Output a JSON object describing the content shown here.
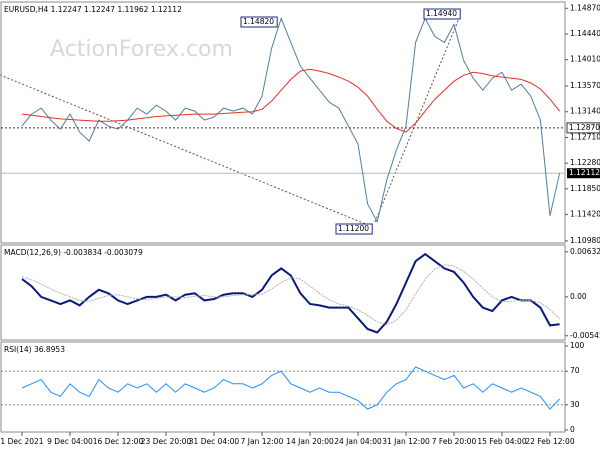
{
  "chart_data": [
    {
      "type": "line",
      "title": "EURUSD,H4  1.12247 1.12247 1.11962 1.12112",
      "watermark": "ActionForex.com",
      "categories": [
        "1 Dec 2021",
        null,
        null,
        null,
        null,
        "9 Dec 04:00",
        null,
        null,
        null,
        null,
        "16 Dec 12:00",
        null,
        null,
        null,
        null,
        "23 Dec 20:00",
        null,
        null,
        null,
        null,
        "31 Dec 04:00",
        null,
        null,
        null,
        null,
        "7 Jan 12:00",
        null,
        null,
        null,
        null,
        "14 Jan 20:00",
        null,
        null,
        null,
        null,
        "24 Jan 04:00",
        null,
        null,
        null,
        null,
        "31 Jan 12:00",
        null,
        null,
        null,
        null,
        "7 Feb 20:00",
        null,
        null,
        null,
        null,
        "15 Feb 04:00",
        null,
        null,
        null,
        null,
        "22 Feb 12:00",
        null
      ],
      "series": [
        {
          "color": "#4f7f9f",
          "values": [
            1.129,
            1.131,
            1.132,
            1.13,
            1.1285,
            1.131,
            1.128,
            1.1265,
            1.13,
            1.129,
            1.1285,
            1.13,
            1.132,
            1.131,
            1.1325,
            1.1315,
            1.13,
            1.132,
            1.1315,
            1.13,
            1.1305,
            1.132,
            1.1315,
            1.132,
            1.131,
            1.134,
            1.142,
            1.147,
            1.143,
            1.139,
            1.137,
            1.135,
            1.133,
            1.132,
            1.129,
            1.126,
            1.116,
            1.113,
            1.12,
            1.125,
            1.129,
            1.143,
            1.147,
            1.144,
            1.143,
            1.146,
            1.14,
            1.137,
            1.135,
            1.137,
            1.138,
            1.135,
            1.136,
            1.134,
            1.13,
            1.114,
            1.12112
          ]
        },
        {
          "color": "#e8302a",
          "values": [
            1.131,
            1.1308,
            1.1306,
            1.1304,
            1.1302,
            1.1301,
            1.13,
            1.1299,
            1.1298,
            1.1298,
            1.1299,
            1.13,
            1.1302,
            1.1304,
            1.1306,
            1.1307,
            1.1308,
            1.1309,
            1.131,
            1.131,
            1.131,
            1.1311,
            1.1312,
            1.1313,
            1.1314,
            1.1318,
            1.1332,
            1.135,
            1.1368,
            1.1382,
            1.1385,
            1.1382,
            1.1378,
            1.1372,
            1.1365,
            1.1355,
            1.134,
            1.1318,
            1.1298,
            1.1286,
            1.128,
            1.1295,
            1.1315,
            1.1335,
            1.135,
            1.1365,
            1.1375,
            1.138,
            1.1378,
            1.1374,
            1.1372,
            1.137,
            1.1368,
            1.1362,
            1.1352,
            1.1335,
            1.1315
          ]
        }
      ],
      "ylim": [
        1.10945,
        1.14975
      ],
      "yticks": [
        {
          "value": 1.1487,
          "label": "1.14870"
        },
        {
          "value": 1.1444,
          "label": "1.14440"
        },
        {
          "value": 1.1401,
          "label": "1.14010"
        },
        {
          "value": 1.1357,
          "label": "1.13570"
        },
        {
          "value": 1.1314,
          "label": "1.13140"
        },
        {
          "value": 1.1271,
          "label": "1.12710"
        },
        {
          "value": 1.1228,
          "label": "1.12280"
        },
        {
          "value": 1.1185,
          "label": "1.11850"
        },
        {
          "value": 1.1142,
          "label": "1.11420"
        },
        {
          "value": 1.1098,
          "label": "1.10980"
        }
      ],
      "level": {
        "value": 1.1287,
        "label": "1.12870"
      },
      "last_price": {
        "value": 1.12112,
        "label": "1.12112"
      },
      "annotations": [
        "1.14820",
        "1.14940",
        "1.11200"
      ]
    },
    {
      "type": "line",
      "title": "MACD(12,26,9) -0.003834 -0.003079",
      "series": [
        {
          "color": "#0a1a7a",
          "values": [
            0.0025,
            0.0015,
            0.0,
            -0.0005,
            -0.001,
            -0.0005,
            -0.0012,
            0.0,
            0.001,
            0.0005,
            -0.0005,
            -0.001,
            -0.0005,
            0.0,
            0.0,
            0.0003,
            -0.0005,
            0.0003,
            0.0005,
            -0.0005,
            -0.0003,
            0.0003,
            0.0005,
            0.0005,
            0.0,
            0.001,
            0.003,
            0.004,
            0.003,
            0.0005,
            -0.001,
            -0.0012,
            -0.0015,
            -0.0015,
            -0.0015,
            -0.003,
            -0.0045,
            -0.005,
            -0.0035,
            -0.001,
            0.002,
            0.005,
            0.006,
            0.005,
            0.004,
            0.0035,
            0.002,
            0.0,
            -0.0015,
            -0.002,
            -0.0005,
            0.0,
            -0.0005,
            -0.0005,
            -0.0015,
            -0.004,
            -0.003834
          ]
        },
        {
          "color": "#b0b0b0",
          "values": [
            0.0028,
            0.0024,
            0.0018,
            0.0011,
            0.0005,
            0.0,
            -0.0005,
            -0.0006,
            -0.0002,
            0.0002,
            0.0003,
            0.0,
            -0.0003,
            -0.0004,
            -0.0002,
            0.0,
            0.0,
            -0.0001,
            0.0001,
            0.0002,
            0.0,
            0.0,
            0.0002,
            0.0003,
            0.0003,
            0.0004,
            0.0011,
            0.002,
            0.0027,
            0.0025,
            0.0015,
            0.0005,
            -0.0004,
            -0.001,
            -0.0013,
            -0.0018,
            -0.0026,
            -0.0035,
            -0.0039,
            -0.0033,
            -0.0018,
            0.0004,
            0.0025,
            0.0039,
            0.0045,
            0.0043,
            0.0036,
            0.0025,
            0.0012,
            0.0,
            -0.0007,
            -0.0006,
            -0.0005,
            -0.0005,
            -0.0008,
            -0.0018,
            -0.003079
          ]
        }
      ],
      "ylim": [
        -0.00605,
        0.00728
      ],
      "yticks": [
        0.00632,
        {
          "value": 0,
          "label": "0.00"
        },
        -0.005455
      ]
    },
    {
      "type": "line",
      "title": "RSI(14) 36.8953",
      "series": [
        {
          "color": "#1e90ff",
          "values": [
            50,
            55,
            60,
            45,
            40,
            55,
            45,
            40,
            60,
            50,
            45,
            55,
            50,
            55,
            45,
            55,
            45,
            55,
            50,
            45,
            50,
            60,
            55,
            55,
            50,
            55,
            65,
            70,
            55,
            50,
            45,
            50,
            45,
            45,
            40,
            35,
            25,
            30,
            45,
            55,
            60,
            75,
            70,
            65,
            60,
            65,
            50,
            55,
            45,
            55,
            50,
            45,
            50,
            45,
            40,
            25,
            36.8953
          ]
        }
      ],
      "ylim": [
        -2.4,
        104.8
      ],
      "yticks": [
        100,
        70,
        30,
        0
      ],
      "levels": [
        70,
        30
      ]
    }
  ]
}
